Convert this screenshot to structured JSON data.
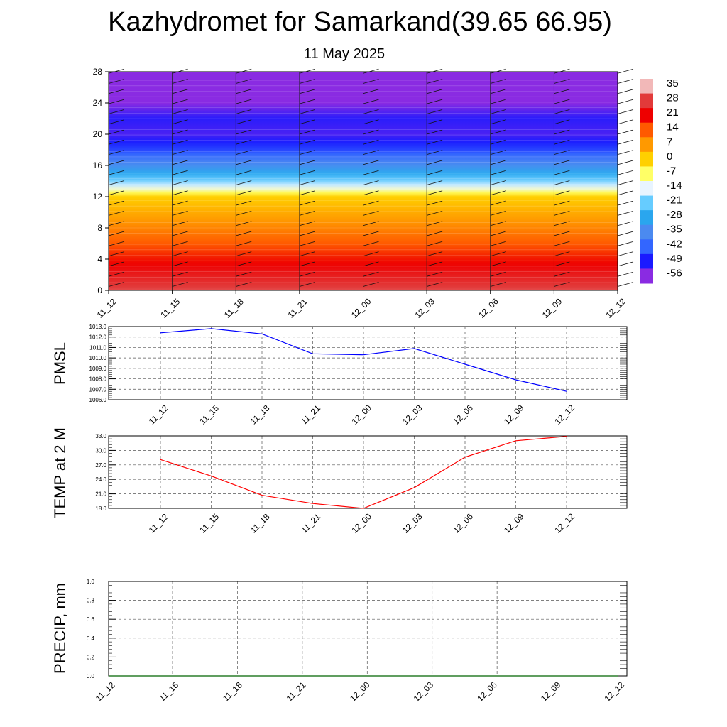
{
  "header": {
    "title": "Kazhydromet for Samarkand(39.65 66.95)",
    "subtitle": "11 May 2025"
  },
  "chart_data": [
    {
      "type": "heatmap",
      "name": "Temperature cross-section with wind barbs",
      "x_categories": [
        "11_12",
        "11_15",
        "11_18",
        "11_21",
        "12_00",
        "12_03",
        "12_06",
        "12_09",
        "12_12"
      ],
      "ylim": [
        0,
        28
      ],
      "y_ticks": [
        "0",
        "4",
        "8",
        "12",
        "16",
        "20",
        "24",
        "28"
      ],
      "colorbar": {
        "labels": [
          "35",
          "28",
          "21",
          "14",
          "7",
          "0",
          "-7",
          "-14",
          "-21",
          "-28",
          "-35",
          "-42",
          "-49",
          "-56"
        ],
        "stops": [
          {
            "value": 35,
            "color": "#f2b8b8"
          },
          {
            "value": 28,
            "color": "#e23a3a"
          },
          {
            "value": 21,
            "color": "#ee0000"
          },
          {
            "value": 14,
            "color": "#ff5a00"
          },
          {
            "value": 7,
            "color": "#ff9900"
          },
          {
            "value": 0,
            "color": "#ffd000"
          },
          {
            "value": -7,
            "color": "#ffff66"
          },
          {
            "value": -14,
            "color": "#e8f4ff"
          },
          {
            "value": -21,
            "color": "#66ccff"
          },
          {
            "value": -28,
            "color": "#2aa6ee"
          },
          {
            "value": -35,
            "color": "#4b8af0"
          },
          {
            "value": -42,
            "color": "#3366ff"
          },
          {
            "value": -49,
            "color": "#1a1aff"
          },
          {
            "value": -56,
            "color": "#8a2be2"
          }
        ]
      },
      "profile": [
        {
          "height": 0,
          "temp": 29
        },
        {
          "height": 3,
          "temp": 22
        },
        {
          "height": 6,
          "temp": 14
        },
        {
          "height": 9,
          "temp": 7
        },
        {
          "height": 12,
          "temp": 0
        },
        {
          "height": 13,
          "temp": -12
        },
        {
          "height": 14.5,
          "temp": -24
        },
        {
          "height": 16,
          "temp": -34
        },
        {
          "height": 18,
          "temp": -45
        },
        {
          "height": 20,
          "temp": -52
        },
        {
          "height": 22,
          "temp": -50
        },
        {
          "height": 24,
          "temp": -56
        },
        {
          "height": 28,
          "temp": -56
        }
      ],
      "colors": {
        "axis": "#000000"
      }
    },
    {
      "type": "line",
      "ylabel": "PMSL",
      "ylim": [
        1006,
        1013
      ],
      "y_ticks": [
        "1006.0",
        "1007.0",
        "1008.0",
        "1009.0",
        "1010.0",
        "1011.0",
        "1012.0",
        "1013.0"
      ],
      "x_categories": [
        "11_12",
        "11_15",
        "11_18",
        "11_21",
        "12_00",
        "12_03",
        "12_06",
        "12_09",
        "12_12"
      ],
      "series": [
        {
          "values": [
            1012.4,
            1012.8,
            1012.3,
            1010.4,
            1010.3,
            1010.9,
            1009.4,
            1007.9,
            1006.8
          ],
          "color": "#0000ff"
        }
      ],
      "grid": true
    },
    {
      "type": "line",
      "ylabel": "TEMP at 2 M",
      "ylim": [
        18,
        33
      ],
      "y_ticks": [
        "18.0",
        "21.0",
        "24.0",
        "27.0",
        "30.0",
        "33.0"
      ],
      "x_categories": [
        "11_12",
        "11_15",
        "11_18",
        "11_21",
        "12_00",
        "12_03",
        "12_06",
        "12_09",
        "12_12"
      ],
      "series": [
        {
          "values": [
            28.1,
            24.7,
            20.7,
            19.0,
            18.0,
            22.3,
            28.6,
            32.0,
            32.9
          ],
          "color": "#ff0000"
        }
      ],
      "grid": true
    },
    {
      "type": "line",
      "ylabel": "PRECIP, mm",
      "ylim": [
        0,
        1
      ],
      "y_ticks": [
        "0.0",
        "0.2",
        "0.4",
        "0.6",
        "0.8",
        "1.0"
      ],
      "x_categories": [
        "11_12",
        "11_15",
        "11_18",
        "11_21",
        "12_00",
        "12_03",
        "12_06",
        "12_09",
        "12_12"
      ],
      "series": [
        {
          "values": [
            0,
            0,
            0,
            0,
            0,
            0,
            0,
            0,
            0
          ],
          "color": "#006400"
        }
      ],
      "grid": true
    }
  ]
}
